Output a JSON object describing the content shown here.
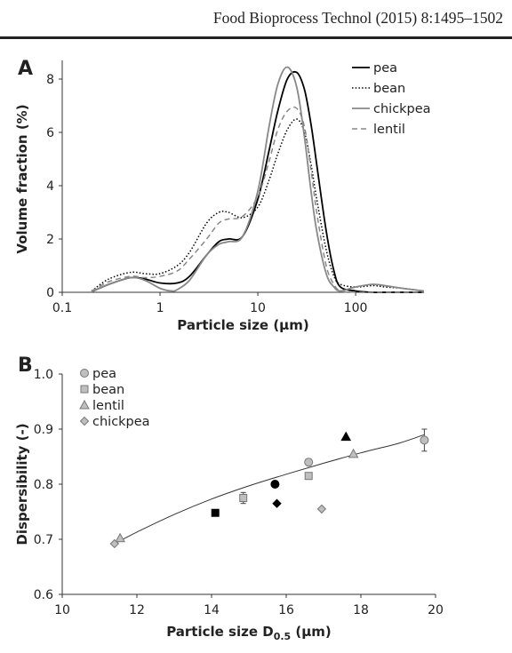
{
  "header": {
    "text": "Food Bioprocess Technol (2015) 8:1495–1502"
  },
  "chart_data": [
    {
      "panel": "A",
      "type": "line",
      "xlabel": "Particle size (µm)",
      "ylabel": "Volume fraction (%)",
      "xscale": "log",
      "xlim": [
        0.1,
        500
      ],
      "ylim": [
        0,
        8.5
      ],
      "xticks": [
        "0.1",
        "1",
        "10",
        "100"
      ],
      "yticks": [
        "0",
        "2",
        "4",
        "6",
        "8"
      ],
      "legend": "top-right",
      "series": [
        {
          "name": "pea",
          "style": "solid",
          "color": "#000000",
          "x": [
            0.2,
            0.3,
            0.5,
            0.7,
            1,
            1.5,
            2,
            3,
            4,
            5,
            7,
            10,
            13,
            16,
            20,
            25,
            30,
            35,
            40,
            50,
            60,
            70,
            100,
            150,
            200,
            300,
            500
          ],
          "y": [
            0.02,
            0.3,
            0.55,
            0.5,
            0.35,
            0.35,
            0.6,
            1.4,
            1.9,
            2.0,
            2.1,
            3.5,
            5.3,
            6.8,
            8.0,
            8.25,
            7.6,
            6.3,
            4.8,
            2.3,
            0.8,
            0.2,
            0.05,
            0.0,
            0.0,
            0.0,
            0.0
          ]
        },
        {
          "name": "bean",
          "style": "dotted",
          "color": "#000000",
          "x": [
            0.2,
            0.3,
            0.5,
            0.7,
            1,
            1.5,
            2,
            3,
            4,
            5,
            7,
            10,
            13,
            16,
            20,
            25,
            30,
            35,
            40,
            50,
            60,
            70,
            100,
            150,
            200,
            300,
            500
          ],
          "y": [
            0.05,
            0.5,
            0.75,
            0.7,
            0.7,
            1.0,
            1.5,
            2.6,
            3.0,
            3.0,
            2.8,
            3.2,
            4.2,
            5.2,
            6.1,
            6.5,
            6.0,
            4.8,
            3.5,
            1.6,
            0.6,
            0.3,
            0.2,
            0.25,
            0.2,
            0.15,
            0.05
          ]
        },
        {
          "name": "chickpea",
          "style": "solid",
          "color": "#888888",
          "x": [
            0.2,
            0.3,
            0.5,
            0.7,
            1,
            1.3,
            1.5,
            2,
            3,
            4,
            5,
            7,
            10,
            13,
            16,
            20,
            25,
            30,
            35,
            40,
            50,
            60,
            70,
            100,
            150,
            200,
            300,
            500
          ],
          "y": [
            0.02,
            0.3,
            0.55,
            0.45,
            0.15,
            0.05,
            0.1,
            0.45,
            1.4,
            1.8,
            1.9,
            2.1,
            3.8,
            6.2,
            7.8,
            8.45,
            7.7,
            5.8,
            3.8,
            2.3,
            0.7,
            0.2,
            0.05,
            0.2,
            0.3,
            0.25,
            0.15,
            0.05
          ]
        },
        {
          "name": "lentil",
          "style": "dashed",
          "color": "#888888",
          "x": [
            0.2,
            0.3,
            0.5,
            0.7,
            1,
            1.5,
            2,
            3,
            4,
            5,
            7,
            10,
            13,
            16,
            20,
            25,
            30,
            35,
            40,
            50,
            60,
            70,
            100,
            150,
            200,
            300,
            500
          ],
          "y": [
            0.05,
            0.4,
            0.6,
            0.55,
            0.6,
            0.8,
            1.25,
            2.0,
            2.6,
            2.75,
            2.85,
            3.6,
            4.9,
            6.1,
            6.8,
            6.9,
            6.2,
            4.6,
            3.0,
            1.0,
            0.3,
            0.05,
            0.0,
            0.0,
            0.0,
            0.0,
            0.0
          ]
        }
      ]
    },
    {
      "panel": "B",
      "type": "scatter",
      "xlabel": "Particle size D",
      "xlabel_sub": "0.5",
      "xlabel_unit": " (µm)",
      "ylabel": "Dispersibility (-)",
      "xlim": [
        10,
        20
      ],
      "ylim": [
        0.6,
        1.0
      ],
      "xticks": [
        "10",
        "12",
        "14",
        "16",
        "18",
        "20"
      ],
      "yticks": [
        "0.6",
        "0.7",
        "0.8",
        "0.9",
        "1.0"
      ],
      "legend": "top-left",
      "legend_entries": [
        {
          "name": "pea",
          "marker": "circle"
        },
        {
          "name": "bean",
          "marker": "square"
        },
        {
          "name": "lentil",
          "marker": "triangle"
        },
        {
          "name": "chickpea",
          "marker": "diamond"
        }
      ],
      "points": [
        {
          "series": "pea",
          "marker": "circle",
          "fill": "#bfbfbf",
          "x": 16.6,
          "y": 0.84,
          "err": 0.005
        },
        {
          "series": "pea",
          "marker": "circle",
          "fill": "#bfbfbf",
          "x": 19.7,
          "y": 0.88,
          "err": 0.02
        },
        {
          "series": "pea",
          "marker": "circle",
          "fill": "#000000",
          "x": 15.7,
          "y": 0.8,
          "err": 0
        },
        {
          "series": "bean",
          "marker": "square",
          "fill": "#bfbfbf",
          "x": 14.85,
          "y": 0.775,
          "err": 0.01
        },
        {
          "series": "bean",
          "marker": "square",
          "fill": "#bfbfbf",
          "x": 16.6,
          "y": 0.815,
          "err": 0.005
        },
        {
          "series": "bean",
          "marker": "square",
          "fill": "#000000",
          "x": 14.1,
          "y": 0.748,
          "err": 0
        },
        {
          "series": "lentil",
          "marker": "triangle",
          "fill": "#bfbfbf",
          "x": 11.55,
          "y": 0.702,
          "err": 0
        },
        {
          "series": "lentil",
          "marker": "triangle",
          "fill": "#bfbfbf",
          "x": 17.8,
          "y": 0.855,
          "err": 0
        },
        {
          "series": "lentil",
          "marker": "triangle",
          "fill": "#000000",
          "x": 17.6,
          "y": 0.886,
          "err": 0
        },
        {
          "series": "chickpea",
          "marker": "diamond",
          "fill": "#bfbfbf",
          "x": 11.4,
          "y": 0.692,
          "err": 0
        },
        {
          "series": "chickpea",
          "marker": "diamond",
          "fill": "#bfbfbf",
          "x": 16.95,
          "y": 0.755,
          "err": 0
        },
        {
          "series": "chickpea",
          "marker": "diamond",
          "fill": "#000000",
          "x": 15.75,
          "y": 0.765,
          "err": 0
        }
      ],
      "trendline": {
        "x": [
          11.4,
          12,
          13,
          14,
          15,
          16,
          17,
          18,
          19,
          19.7
        ],
        "y": [
          0.692,
          0.713,
          0.745,
          0.773,
          0.797,
          0.818,
          0.838,
          0.857,
          0.874,
          0.89
        ]
      }
    }
  ]
}
